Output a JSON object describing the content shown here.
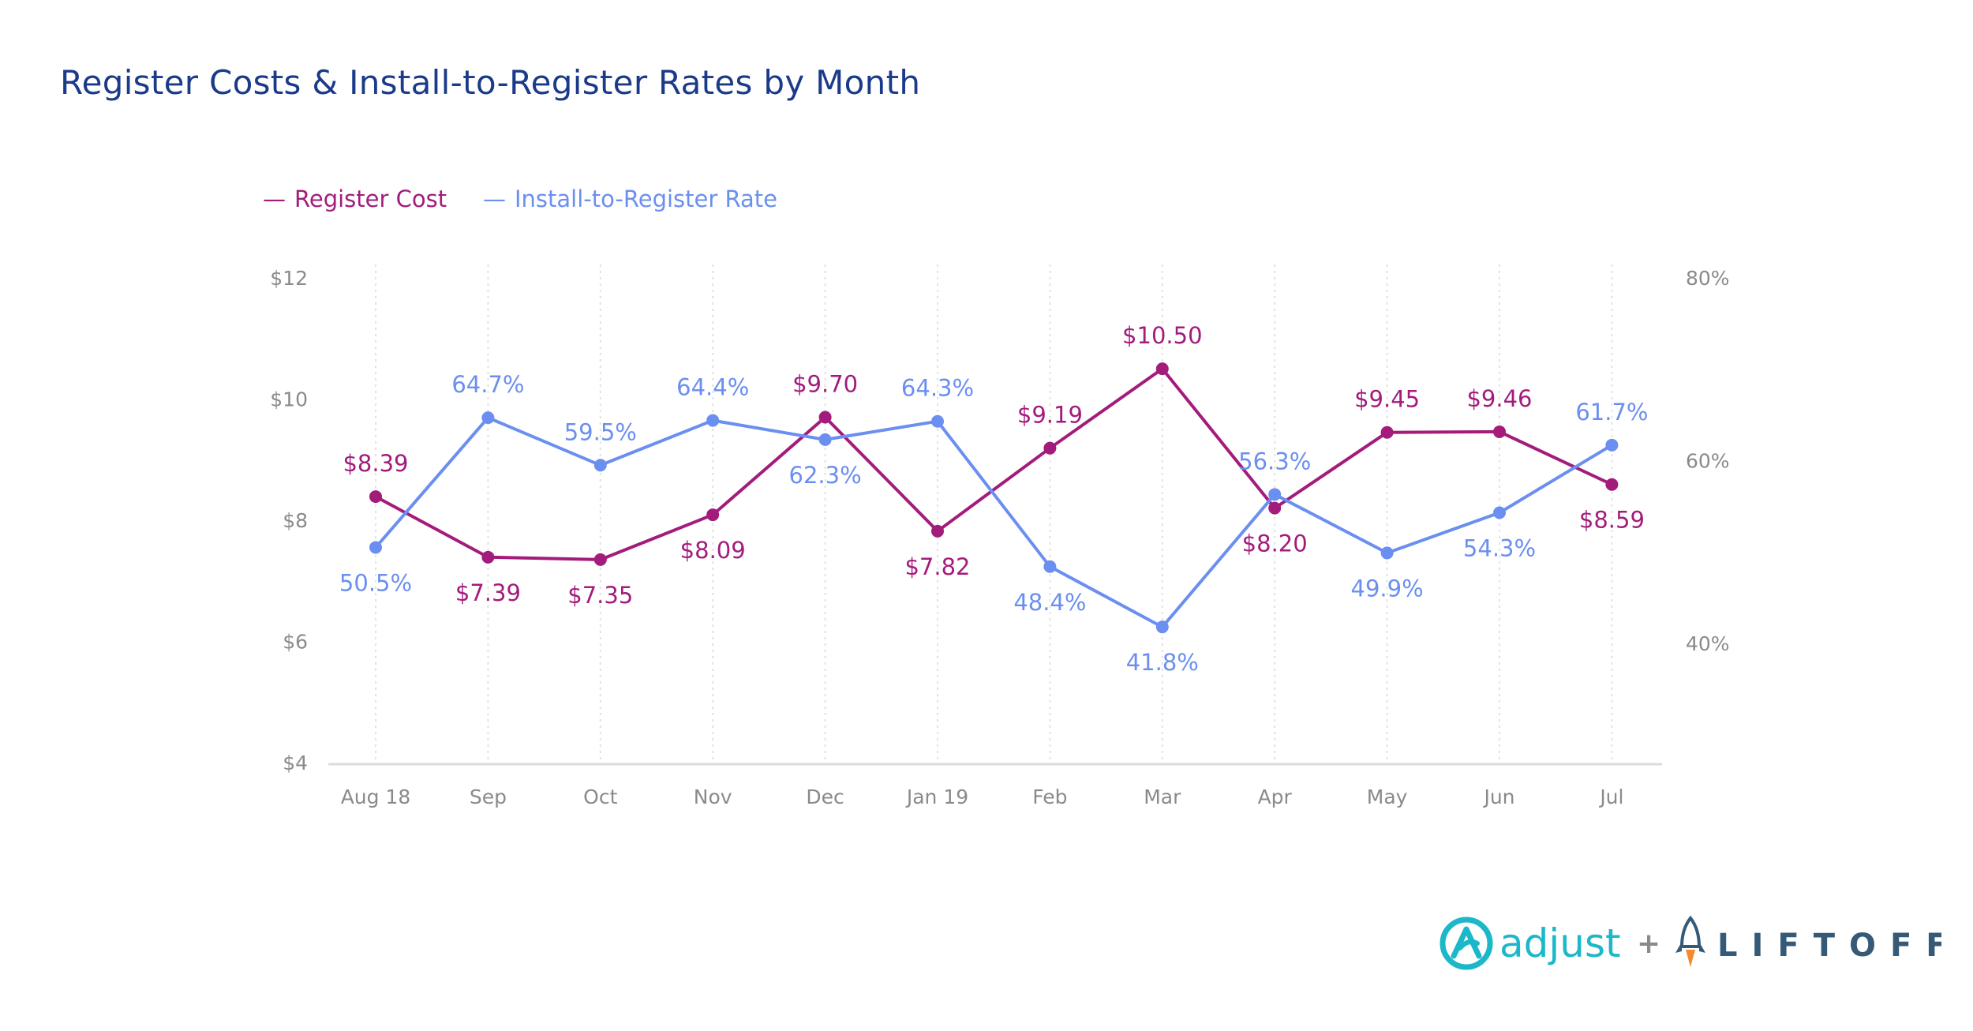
{
  "chart_data": {
    "type": "line",
    "title": "Register Costs & Install-to-Register Rates by Month",
    "categories": [
      "Aug 18",
      "Sep",
      "Oct",
      "Nov",
      "Dec",
      "Jan 19",
      "Feb",
      "Mar",
      "Apr",
      "May",
      "Jun",
      "Jul"
    ],
    "series": [
      {
        "name": "Register Cost",
        "axis": "left",
        "color": "#a31c7c",
        "values": [
          8.39,
          7.39,
          7.35,
          8.09,
          9.7,
          7.82,
          9.19,
          10.5,
          8.2,
          9.45,
          9.46,
          8.59
        ],
        "labels": [
          "$8.39",
          "$7.39",
          "$7.35",
          "$8.09",
          "$9.70",
          "$7.82",
          "$9.19",
          "$10.50",
          "$8.20",
          "$9.45",
          "$9.46",
          "$8.59"
        ]
      },
      {
        "name": "Install-to-Register Rate",
        "axis": "right",
        "color": "#6b8ff0",
        "values": [
          50.5,
          64.7,
          59.5,
          64.4,
          62.3,
          64.3,
          48.4,
          41.8,
          56.3,
          49.9,
          54.3,
          61.7
        ],
        "labels": [
          "50.5%",
          "64.7%",
          "59.5%",
          "64.4%",
          "62.3%",
          "64.3%",
          "48.4%",
          "41.8%",
          "56.3%",
          "49.9%",
          "54.3%",
          "61.7%"
        ]
      }
    ],
    "y_left": {
      "range": [
        4,
        12
      ],
      "ticks": [
        4,
        6,
        8,
        10,
        12
      ],
      "tick_labels": [
        "$4",
        "$6",
        "$8",
        "$10",
        "$12"
      ]
    },
    "y_right": {
      "range": [
        27,
        80
      ],
      "ticks": [
        40,
        60,
        80
      ],
      "tick_labels": [
        "40%",
        "60%",
        "80%"
      ]
    },
    "grid": "vertical dotted",
    "legend_placement": "top-left"
  },
  "legend": {
    "marker": "—",
    "items": [
      "Register Cost",
      "Install-to-Register Rate"
    ]
  },
  "logos": {
    "adjust": "adjust",
    "plus": "+",
    "liftoff": "LIFTOFF"
  },
  "colors": {
    "title": "#1a3a8a",
    "register_cost": "#a31c7c",
    "install_rate": "#6b8ff0",
    "adjust_brand": "#1cb8c9",
    "liftoff_brand": "#355a78"
  }
}
